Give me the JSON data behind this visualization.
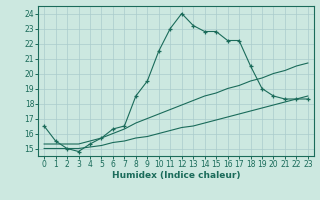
{
  "xlabel": "Humidex (Indice chaleur)",
  "background_color": "#cce8e0",
  "grid_color": "#aacccc",
  "line_color": "#1a6b5a",
  "xlim": [
    -0.5,
    23.5
  ],
  "ylim": [
    14.5,
    24.5
  ],
  "xticks": [
    0,
    1,
    2,
    3,
    4,
    5,
    6,
    7,
    8,
    9,
    10,
    11,
    12,
    13,
    14,
    15,
    16,
    17,
    18,
    19,
    20,
    21,
    22,
    23
  ],
  "yticks": [
    15,
    16,
    17,
    18,
    19,
    20,
    21,
    22,
    23,
    24
  ],
  "series1_x": [
    0,
    1,
    2,
    3,
    4,
    5,
    6,
    7,
    8,
    9,
    10,
    11,
    12,
    13,
    14,
    15,
    16,
    17,
    18,
    19,
    20,
    21,
    22,
    23
  ],
  "series1_y": [
    16.5,
    15.5,
    15.0,
    14.8,
    15.3,
    15.7,
    16.3,
    16.5,
    18.5,
    19.5,
    21.5,
    23.0,
    24.0,
    23.2,
    22.8,
    22.8,
    22.2,
    22.2,
    20.5,
    19.0,
    18.5,
    18.3,
    18.3,
    18.3
  ],
  "series2_x": [
    0,
    1,
    2,
    3,
    4,
    5,
    6,
    7,
    8,
    9,
    10,
    11,
    12,
    13,
    14,
    15,
    16,
    17,
    18,
    19,
    20,
    21,
    22,
    23
  ],
  "series2_y": [
    15.3,
    15.3,
    15.3,
    15.3,
    15.5,
    15.7,
    16.0,
    16.3,
    16.7,
    17.0,
    17.3,
    17.6,
    17.9,
    18.2,
    18.5,
    18.7,
    19.0,
    19.2,
    19.5,
    19.7,
    20.0,
    20.2,
    20.5,
    20.7
  ],
  "series3_x": [
    0,
    1,
    2,
    3,
    4,
    5,
    6,
    7,
    8,
    9,
    10,
    11,
    12,
    13,
    14,
    15,
    16,
    17,
    18,
    19,
    20,
    21,
    22,
    23
  ],
  "series3_y": [
    15.0,
    15.0,
    15.0,
    15.0,
    15.1,
    15.2,
    15.4,
    15.5,
    15.7,
    15.8,
    16.0,
    16.2,
    16.4,
    16.5,
    16.7,
    16.9,
    17.1,
    17.3,
    17.5,
    17.7,
    17.9,
    18.1,
    18.3,
    18.5
  ]
}
